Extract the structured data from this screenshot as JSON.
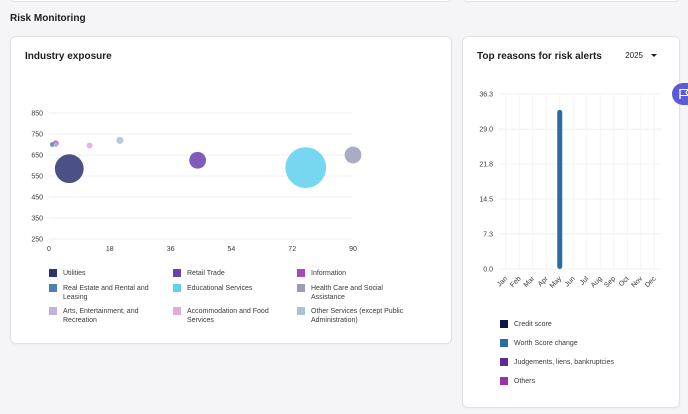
{
  "section": {
    "title": "Risk Monitoring"
  },
  "industry": {
    "title": "Industry exposure",
    "legend": [
      {
        "label": "Utilities",
        "color": "#2d3270"
      },
      {
        "label": "Retail Trade",
        "color": "#6a3fb1"
      },
      {
        "label": "Information",
        "color": "#a44cb3"
      },
      {
        "label": "Real Estate and Rental and Leasing",
        "color": "#4f7fb0"
      },
      {
        "label": "Educational Services",
        "color": "#5fd0ef"
      },
      {
        "label": "Health Care and Social Assistance",
        "color": "#9c9cb8"
      },
      {
        "label": "Arts, Entertainment, and Recreation",
        "color": "#c2b3dc"
      },
      {
        "label": "Accommodation and Food Services",
        "color": "#e0a9df"
      },
      {
        "label": "Other Services (except Public Administration)",
        "color": "#a9c2db"
      }
    ]
  },
  "alerts": {
    "title": "Top reasons for risk alerts",
    "year": "2025",
    "legend": [
      {
        "label": "Credit score",
        "color": "#14124b"
      },
      {
        "label": "Worth Score change",
        "color": "#2b6ca3"
      },
      {
        "label": "Judgements, liens, bankruptcies",
        "color": "#5b2d91"
      },
      {
        "label": "Others",
        "color": "#9b2fae"
      }
    ]
  },
  "chart_data": [
    {
      "type": "scatter",
      "title": "Industry exposure",
      "xlabel": "",
      "ylabel": "",
      "xlim": [
        0,
        90
      ],
      "ylim": [
        250,
        850
      ],
      "x_ticks": [
        0,
        18,
        36,
        54,
        72,
        90
      ],
      "y_ticks": [
        250,
        350,
        450,
        550,
        650,
        750,
        850
      ],
      "grid": true,
      "series": [
        {
          "name": "Utilities",
          "x": 6,
          "y": 585,
          "size": 12,
          "color": "#2d3270"
        },
        {
          "name": "Real Estate and Rental and Leasing",
          "x": 1,
          "y": 700,
          "size": 2,
          "color": "#4f7fb0"
        },
        {
          "name": "Information",
          "x": 2,
          "y": 705,
          "size": 2.5,
          "color": "#a44cb3"
        },
        {
          "name": "Accommodation and Food Services",
          "x": 12,
          "y": 695,
          "size": 2.5,
          "color": "#e0a9df"
        },
        {
          "name": "Other Services (except Public Administration)",
          "x": 21,
          "y": 720,
          "size": 3,
          "color": "#a9c2db"
        },
        {
          "name": "Retail Trade",
          "x": 44,
          "y": 625,
          "size": 7,
          "color": "#6a3fb1"
        },
        {
          "name": "Educational Services",
          "x": 76,
          "y": 590,
          "size": 17,
          "color": "#5fd0ef"
        },
        {
          "name": "Health Care and Social Assistance",
          "x": 90,
          "y": 650,
          "size": 7,
          "color": "#9c9cb8"
        },
        {
          "name": "Arts, Entertainment, and Recreation",
          "x": 2,
          "y": 700,
          "size": 2,
          "color": "#c2b3dc"
        }
      ]
    },
    {
      "type": "bar",
      "title": "Top reasons for risk alerts",
      "categories": [
        "Jan",
        "Feb",
        "Mar",
        "Apr",
        "May",
        "Jun",
        "Jul",
        "Aug",
        "Sep",
        "Oct",
        "Nov",
        "Dec"
      ],
      "ylim": [
        0,
        36.3
      ],
      "y_ticks": [
        "0.0",
        "7.3",
        "14.5",
        "21.8",
        "29.0",
        "36.3"
      ],
      "series": [
        {
          "name": "Credit score",
          "values": [
            0,
            0,
            0,
            0,
            0,
            0,
            0,
            0,
            0,
            0,
            0,
            0
          ]
        },
        {
          "name": "Worth Score change",
          "values": [
            0,
            0,
            0,
            0,
            33,
            0,
            0,
            0,
            0,
            0,
            0,
            0
          ]
        },
        {
          "name": "Judgements, liens, bankruptcies",
          "values": [
            0,
            0,
            0,
            0,
            0,
            0,
            0,
            0,
            0,
            0,
            0,
            0
          ]
        },
        {
          "name": "Others",
          "values": [
            0,
            0,
            0,
            0,
            0,
            0,
            0,
            0,
            0,
            0,
            0,
            0
          ]
        }
      ]
    }
  ]
}
